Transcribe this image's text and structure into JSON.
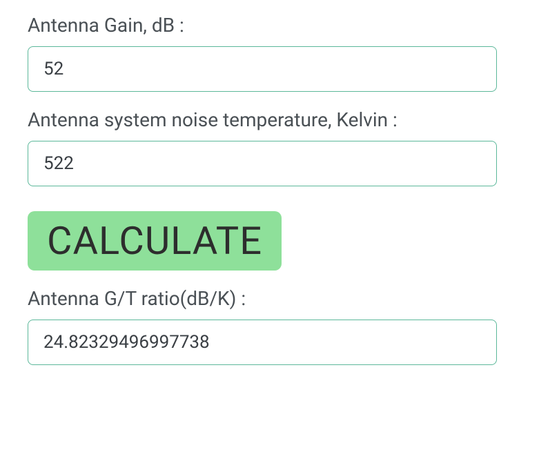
{
  "fields": {
    "gain": {
      "label": "Antenna Gain, dB :",
      "value": "52"
    },
    "noise_temp": {
      "label": "Antenna system noise temperature, Kelvin :",
      "value": "522"
    },
    "gt_ratio": {
      "label": "Antenna G/T ratio(dB/K) :",
      "value": "24.82329496997738"
    }
  },
  "button": {
    "calculate_label": "CALCULATE"
  },
  "colors": {
    "input_border": "#5cb89a",
    "button_bg": "#8ee09a",
    "label_text": "#4a5055",
    "input_text": "#3a3f44"
  }
}
